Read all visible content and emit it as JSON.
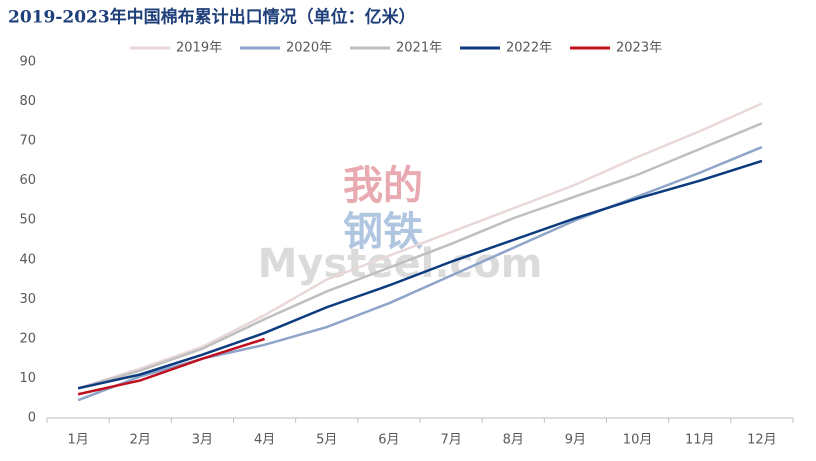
{
  "chart_data": {
    "type": "line",
    "title": "2019-2023年中国棉布累计出口情况（单位：亿米）",
    "watermark": [
      "我的",
      "钢铁",
      "Mysteel.com"
    ],
    "categories": [
      "1月",
      "2月",
      "3月",
      "4月",
      "5月",
      "6月",
      "7月",
      "8月",
      "9月",
      "10月",
      "11月",
      "12月"
    ],
    "series": [
      {
        "name": "2019年",
        "color": "#ead8d8",
        "values": [
          7.5,
          12.5,
          18,
          26,
          35,
          41,
          47,
          53,
          59,
          66,
          72.5,
          79.5
        ]
      },
      {
        "name": "2020年",
        "color": "#8ea4c8",
        "values": [
          4.5,
          10.5,
          15,
          18.5,
          23,
          29,
          36,
          43,
          50,
          56,
          62,
          68.5
        ]
      },
      {
        "name": "2021年",
        "color": "#bfbfbf",
        "values": [
          7.5,
          12,
          17.5,
          25,
          32,
          38,
          44,
          50.5,
          56,
          61.5,
          68,
          74.5
        ]
      },
      {
        "name": "2022年",
        "color": "#0b3a7e",
        "values": [
          7.5,
          11,
          16,
          21.5,
          28,
          33.5,
          39.5,
          45,
          50.5,
          55.5,
          60,
          65
        ]
      },
      {
        "name": "2023年",
        "color": "#c0101f",
        "values": [
          6,
          9.5,
          15,
          20,
          null,
          null,
          null,
          null,
          null,
          null,
          null,
          null
        ]
      }
    ],
    "ylim": [
      0,
      90
    ],
    "yticks": [
      0,
      10,
      20,
      30,
      40,
      50,
      60,
      70,
      80,
      90
    ],
    "grid": false,
    "legend": "top"
  }
}
